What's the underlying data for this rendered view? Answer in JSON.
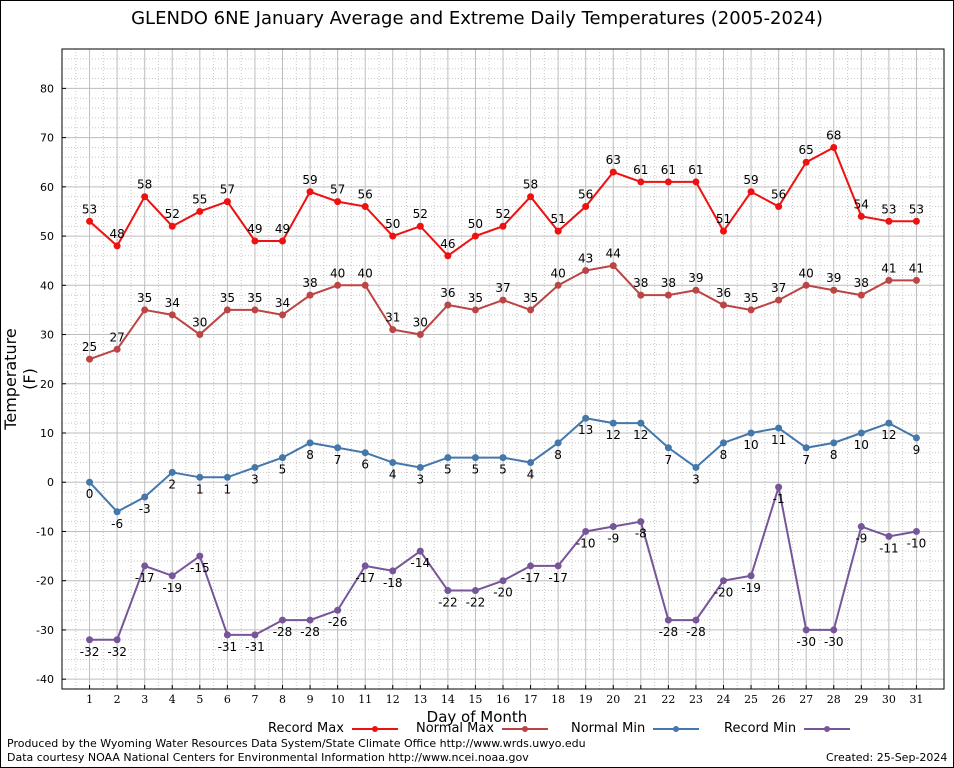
{
  "chart_data": {
    "type": "line",
    "title": "GLENDO 6NE January Average and Extreme Daily Temperatures (2005-2024)",
    "xlabel": "Day of Month",
    "ylabel": "Temperature (F)",
    "ylim": [
      -42,
      88
    ],
    "yticks": [
      -40,
      -30,
      -20,
      -10,
      0,
      10,
      20,
      30,
      40,
      50,
      60,
      70,
      80
    ],
    "x": [
      1,
      2,
      3,
      4,
      5,
      6,
      7,
      8,
      9,
      10,
      11,
      12,
      13,
      14,
      15,
      16,
      17,
      18,
      19,
      20,
      21,
      22,
      23,
      24,
      25,
      26,
      27,
      28,
      29,
      30,
      31
    ],
    "grid": true,
    "legend_position": "bottom",
    "series": [
      {
        "name": "Record Max",
        "color": "#ee1111",
        "label_position": "above",
        "values": [
          53,
          48,
          58,
          52,
          55,
          57,
          49,
          49,
          59,
          57,
          56,
          50,
          52,
          46,
          50,
          52,
          58,
          51,
          56,
          63,
          61,
          61,
          61,
          51,
          59,
          56,
          65,
          68,
          54,
          53,
          53
        ]
      },
      {
        "name": "Normal Max",
        "color": "#bb4444",
        "label_position": "above",
        "values": [
          25,
          27,
          35,
          34,
          30,
          35,
          35,
          34,
          38,
          40,
          40,
          31,
          30,
          36,
          35,
          37,
          35,
          40,
          43,
          44,
          38,
          38,
          39,
          36,
          35,
          37,
          40,
          39,
          38,
          41,
          41
        ]
      },
      {
        "name": "Normal Min",
        "color": "#4477aa",
        "label_position": "below",
        "values": [
          0,
          -6,
          -3,
          2,
          1,
          1,
          3,
          5,
          8,
          7,
          6,
          4,
          3,
          5,
          5,
          5,
          4,
          8,
          13,
          12,
          12,
          7,
          3,
          8,
          10,
          11,
          7,
          8,
          10,
          12,
          9
        ]
      },
      {
        "name": "Record Min",
        "color": "#775599",
        "label_position": "below",
        "values": [
          -32,
          -32,
          -17,
          -19,
          -15,
          -31,
          -31,
          -28,
          -28,
          -26,
          -17,
          -18,
          -14,
          -22,
          -22,
          -20,
          -17,
          -17,
          -10,
          -9,
          -8,
          -28,
          -28,
          -20,
          -19,
          -1,
          -30,
          -30,
          -9,
          -11,
          -10
        ]
      }
    ]
  },
  "footer": {
    "produced_by": "Produced by the Wyoming Water Resources Data System/State Climate Office http://www.wrds.uwyo.edu",
    "courtesy": "Data courtesy NOAA National Centers for Environmental Information http://www.ncei.noaa.gov",
    "created": "Created:  25-Sep-2024"
  }
}
